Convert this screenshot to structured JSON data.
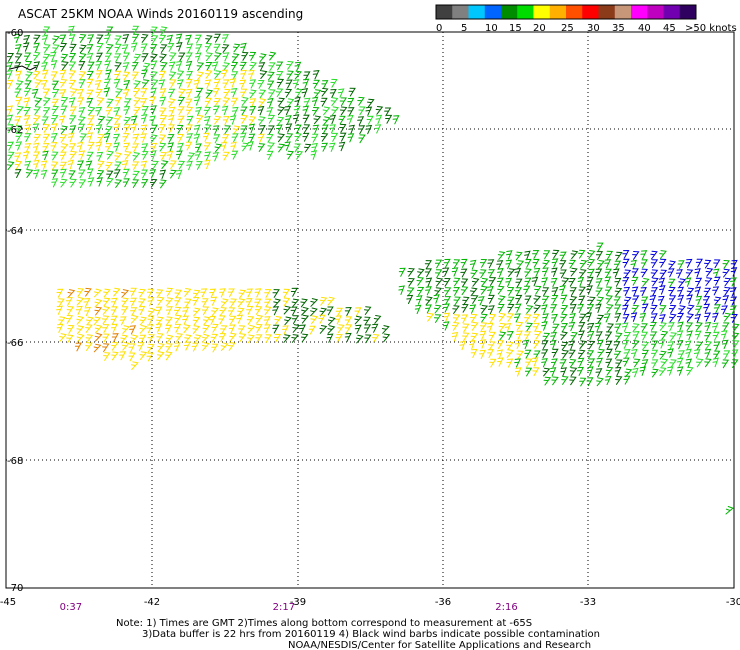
{
  "title": "ASCAT 25KM NOAA Winds 20160119 ascending",
  "legend": {
    "labels": [
      "0",
      "5",
      "10",
      "15",
      "20",
      "25",
      "30",
      "35",
      "40",
      "45",
      ">50 knots"
    ],
    "colors": [
      "#404040",
      "#808080",
      "#00c8ff",
      "#0064ff",
      "#008c00",
      "#00dc00",
      "#ffff00",
      "#ffb000",
      "#ff5000",
      "#ff0000",
      "#8b3a1a",
      "#c89678",
      "#ff00ff",
      "#c000c0",
      "#7000b0",
      "#300060"
    ]
  },
  "axes": {
    "lon_ticks": [
      "-45",
      "-42",
      "-39",
      "-36",
      "-33",
      "-30"
    ],
    "lat_ticks": [
      "-60",
      "-62",
      "-64",
      "-66",
      "-68",
      "-70"
    ],
    "lon_range": [
      -45,
      -30
    ],
    "lat_range": [
      -60,
      -70
    ]
  },
  "pass_times": [
    {
      "label": "0:37",
      "lon": -43.7
    },
    {
      "label": "2:17",
      "lon": -39.3
    },
    {
      "label": "2:16",
      "lon": -34.7
    }
  ],
  "notes": {
    "line1": "Note: 1) Times are GMT 2)Times along bottom correspond to measurement at -65S",
    "line2": "3)Data buffer is 22 hrs from 20160119 4) Black wind barbs indicate possible contamination",
    "line3": "NOAA/NESDIS/Center for Satellite Applications and Research"
  },
  "barb_colors": {
    "yellow": "#ffe000",
    "dark_green": "#006400",
    "green": "#00b400",
    "light_green": "#28dc28",
    "blue": "#0000dc",
    "orange": "#e08000",
    "black": "#000000"
  }
}
